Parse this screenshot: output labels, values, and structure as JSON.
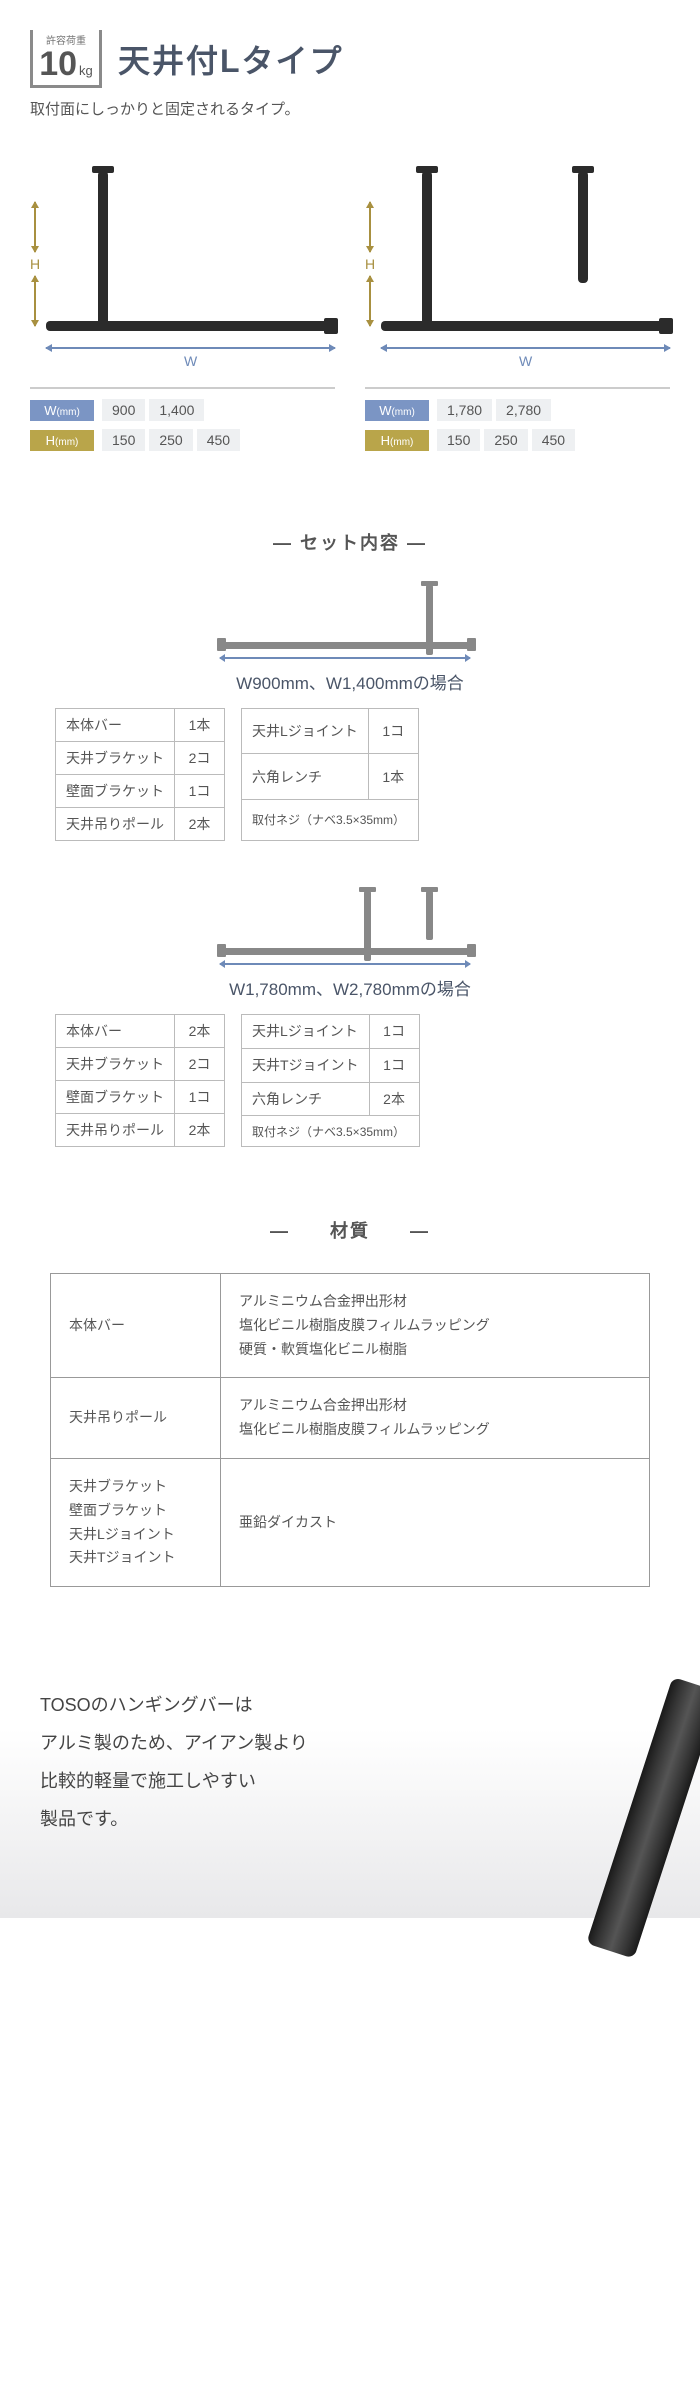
{
  "header": {
    "load_label": "許容荷重",
    "load_value": "10",
    "load_unit": "kg",
    "title": "天井付Lタイプ",
    "subtitle": "取付面にしっかりと固定されるタイプ。"
  },
  "dim_letters": {
    "h": "H",
    "w": "W"
  },
  "dim_labels": {
    "w_key": "W",
    "w_unit": "(mm)",
    "h_key": "H",
    "h_unit": "(mm)"
  },
  "products": [
    {
      "posts": [
        {
          "left_pct": 18,
          "height_pct": 100
        }
      ],
      "w_values": [
        "900",
        "1,400"
      ],
      "h_values": [
        "150",
        "250",
        "450"
      ]
    },
    {
      "posts": [
        {
          "left_pct": 14,
          "height_pct": 100
        },
        {
          "left_pct": 68,
          "height_pct": 70
        }
      ],
      "w_values": [
        "1,780",
        "2,780"
      ],
      "h_values": [
        "150",
        "250",
        "450"
      ]
    }
  ],
  "sections": {
    "contents_title": "―  セット内容  ―",
    "material_title": "―　　材質　　―"
  },
  "configs": [
    {
      "label": "W900mm、W1,400mmの場合",
      "posts": [
        {
          "right_pct": 18,
          "height_pct": 100
        }
      ],
      "left": [
        {
          "name": "本体バー",
          "qty": "1本"
        },
        {
          "name": "天井ブラケット",
          "qty": "2コ"
        },
        {
          "name": "壁面ブラケット",
          "qty": "1コ"
        },
        {
          "name": "天井吊りポール",
          "qty": "2本"
        }
      ],
      "right": [
        {
          "name": "天井Lジョイント",
          "qty": "1コ"
        },
        {
          "name": "六角レンチ",
          "qty": "1本"
        },
        {
          "name": "取付ネジ（ナベ3.5×35mm）",
          "full": true
        }
      ]
    },
    {
      "label": "W1,780mm、W2,780mmの場合",
      "posts": [
        {
          "right_pct": 42,
          "height_pct": 100
        },
        {
          "right_pct": 18,
          "height_pct": 70
        }
      ],
      "left": [
        {
          "name": "本体バー",
          "qty": "2本"
        },
        {
          "name": "天井ブラケット",
          "qty": "2コ"
        },
        {
          "name": "壁面ブラケット",
          "qty": "1コ"
        },
        {
          "name": "天井吊りポール",
          "qty": "2本"
        }
      ],
      "right": [
        {
          "name": "天井Lジョイント",
          "qty": "1コ"
        },
        {
          "name": "天井Tジョイント",
          "qty": "1コ"
        },
        {
          "name": "六角レンチ",
          "qty": "2本"
        },
        {
          "name": "取付ネジ（ナベ3.5×35mm）",
          "full": true
        }
      ]
    }
  ],
  "materials": [
    {
      "label": "本体バー",
      "desc": "アルミニウム合金押出形材\n塩化ビニル樹脂皮膜フィルムラッピング\n硬質・軟質塩化ビニル樹脂"
    },
    {
      "label": "天井吊りポール",
      "desc": "アルミニウム合金押出形材\n塩化ビニル樹脂皮膜フィルムラッピング"
    },
    {
      "label": "天井ブラケット\n壁面ブラケット\n天井Lジョイント\n天井Tジョイント",
      "desc": "亜鉛ダイカスト"
    }
  ],
  "footer": {
    "text": "TOSOのハンギングバーは\nアルミ製のため、アイアン製より\n比較的軽量で施工しやすい\n製品です。"
  },
  "colors": {
    "w_key_bg": "#7b95c4",
    "h_key_bg": "#b9a54a",
    "bar_dark": "#2b2b2b",
    "arrow_h": "#6e8ab8",
    "arrow_v": "#a89040"
  }
}
